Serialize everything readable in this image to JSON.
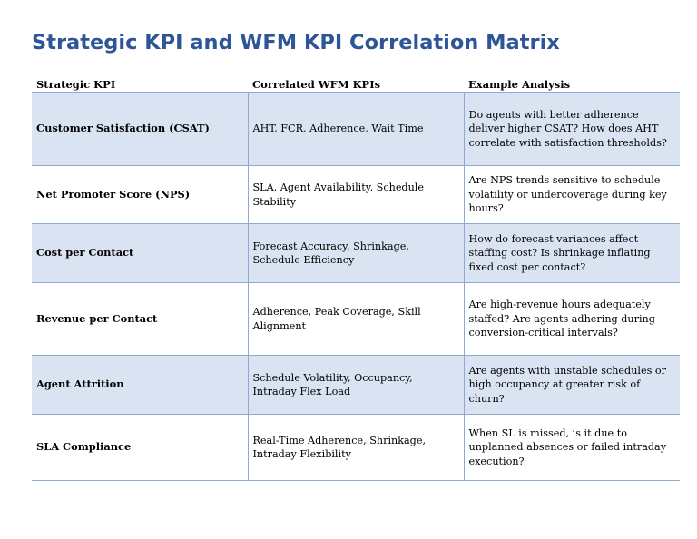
{
  "document": {
    "title": "Strategic KPI and WFM KPI Correlation Matrix"
  },
  "table": {
    "headers": [
      "Strategic KPI",
      "Correlated WFM KPIs",
      "Example Analysis"
    ],
    "rows": [
      {
        "strategic_kpi": "Customer Satisfaction (CSAT)",
        "wfm_kpis": "AHT, FCR, Adherence, Wait Time",
        "analysis": "Do agents with better adherence deliver higher CSAT? How does AHT correlate with satisfaction thresholds?",
        "shaded": true
      },
      {
        "strategic_kpi": "Net Promoter Score (NPS)",
        "wfm_kpis": "SLA, Agent Availability, Schedule Stability",
        "analysis": "Are NPS trends sensitive to schedule volatility or undercoverage during key hours?",
        "shaded": false
      },
      {
        "strategic_kpi": "Cost per Contact",
        "wfm_kpis": "Forecast Accuracy, Shrinkage, Schedule Efficiency",
        "analysis": "How do forecast variances affect staffing cost? Is shrinkage inflating fixed cost per contact?",
        "shaded": true
      },
      {
        "strategic_kpi": "Revenue per Contact",
        "wfm_kpis": "Adherence, Peak Coverage, Skill Alignment",
        "analysis": "Are high-revenue hours adequately staffed? Are agents adhering during conversion-critical intervals?",
        "shaded": false
      },
      {
        "strategic_kpi": "Agent Attrition",
        "wfm_kpis": "Schedule Volatility, Occupancy, Intraday Flex Load",
        "analysis": "Are agents with unstable schedules or high occupancy at greater risk of churn?",
        "shaded": true
      },
      {
        "strategic_kpi": "SLA Compliance",
        "wfm_kpis": "Real-Time Adherence, Shrinkage, Intraday Flexibility",
        "analysis": "When SL is missed, is it due to unplanned absences or failed intraday execution?",
        "shaded": false
      }
    ]
  }
}
